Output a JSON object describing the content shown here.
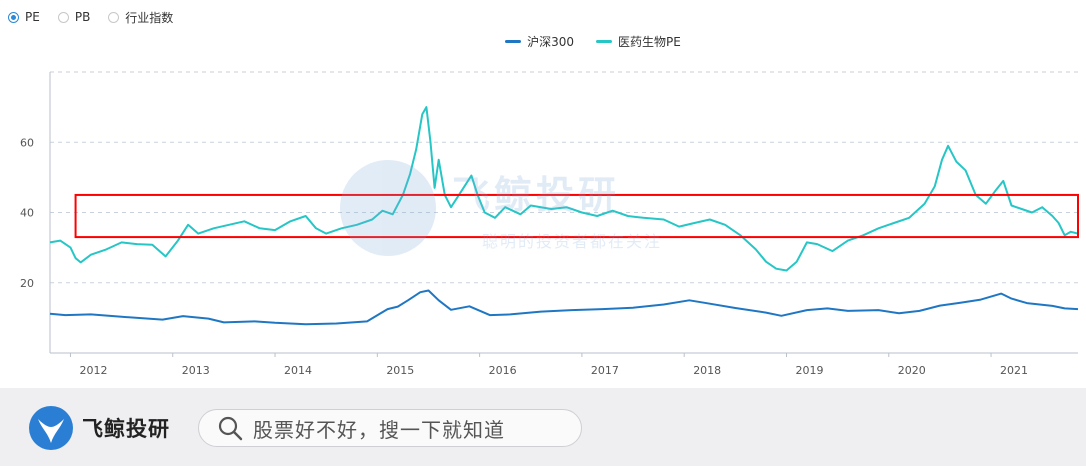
{
  "radio_options": [
    {
      "label": "PE",
      "selected": true
    },
    {
      "label": "PB",
      "selected": false
    },
    {
      "label": "行业指数",
      "selected": false
    }
  ],
  "watermark": {
    "title": "飞鲸投研",
    "subtitle": "聪明的投资者都在关注"
  },
  "footer": {
    "brand": "飞鲸投研",
    "search_placeholder": "股票好不好，搜一下就知道"
  },
  "colors": {
    "hs300": "#1f77c4",
    "pharma": "#26c6c6",
    "highlight": "#ff0000",
    "grid": "#c9d2dc"
  },
  "chart_data": {
    "type": "line",
    "x_range": [
      2011.8,
      2021.85
    ],
    "ylim": [
      0,
      80
    ],
    "yticks": [
      20,
      40,
      60
    ],
    "xticks": [
      "2012",
      "2013",
      "2014",
      "2015",
      "2016",
      "2017",
      "2018",
      "2019",
      "2020",
      "2021"
    ],
    "grid": true,
    "legend_position": "top-center",
    "series": [
      {
        "name": "沪深300",
        "color": "#1f77c4",
        "points": [
          [
            2011.8,
            11.2
          ],
          [
            2011.95,
            10.8
          ],
          [
            2012.2,
            11.0
          ],
          [
            2012.5,
            10.3
          ],
          [
            2012.9,
            9.5
          ],
          [
            2013.1,
            10.5
          ],
          [
            2013.35,
            9.8
          ],
          [
            2013.5,
            8.7
          ],
          [
            2013.8,
            9.0
          ],
          [
            2014.0,
            8.6
          ],
          [
            2014.3,
            8.2
          ],
          [
            2014.6,
            8.4
          ],
          [
            2014.9,
            9.0
          ],
          [
            2015.1,
            12.5
          ],
          [
            2015.2,
            13.2
          ],
          [
            2015.3,
            15.0
          ],
          [
            2015.42,
            17.3
          ],
          [
            2015.5,
            17.8
          ],
          [
            2015.6,
            15.0
          ],
          [
            2015.72,
            12.3
          ],
          [
            2015.9,
            13.3
          ],
          [
            2016.1,
            10.8
          ],
          [
            2016.3,
            11.0
          ],
          [
            2016.6,
            11.8
          ],
          [
            2016.9,
            12.2
          ],
          [
            2017.2,
            12.5
          ],
          [
            2017.5,
            12.9
          ],
          [
            2017.8,
            13.8
          ],
          [
            2018.05,
            15.0
          ],
          [
            2018.2,
            14.3
          ],
          [
            2018.5,
            12.8
          ],
          [
            2018.8,
            11.5
          ],
          [
            2018.95,
            10.6
          ],
          [
            2019.2,
            12.2
          ],
          [
            2019.4,
            12.7
          ],
          [
            2019.6,
            12.0
          ],
          [
            2019.9,
            12.2
          ],
          [
            2020.1,
            11.3
          ],
          [
            2020.3,
            12.0
          ],
          [
            2020.5,
            13.5
          ],
          [
            2020.7,
            14.3
          ],
          [
            2020.9,
            15.2
          ],
          [
            2021.1,
            16.9
          ],
          [
            2021.2,
            15.5
          ],
          [
            2021.35,
            14.2
          ],
          [
            2021.6,
            13.4
          ],
          [
            2021.72,
            12.7
          ],
          [
            2021.85,
            12.5
          ]
        ]
      },
      {
        "name": "医药生物PE",
        "color": "#26c6c6",
        "points": [
          [
            2011.8,
            31.5
          ],
          [
            2011.9,
            32.0
          ],
          [
            2012.0,
            30.0
          ],
          [
            2012.05,
            27.0
          ],
          [
            2012.1,
            25.8
          ],
          [
            2012.2,
            28.0
          ],
          [
            2012.35,
            29.5
          ],
          [
            2012.5,
            31.5
          ],
          [
            2012.65,
            31.0
          ],
          [
            2012.8,
            30.8
          ],
          [
            2012.93,
            27.5
          ],
          [
            2013.05,
            32.0
          ],
          [
            2013.15,
            36.5
          ],
          [
            2013.25,
            34.0
          ],
          [
            2013.4,
            35.5
          ],
          [
            2013.55,
            36.5
          ],
          [
            2013.7,
            37.5
          ],
          [
            2013.85,
            35.5
          ],
          [
            2014.0,
            35.0
          ],
          [
            2014.15,
            37.5
          ],
          [
            2014.3,
            39.0
          ],
          [
            2014.4,
            35.5
          ],
          [
            2014.5,
            34.0
          ],
          [
            2014.65,
            35.5
          ],
          [
            2014.8,
            36.5
          ],
          [
            2014.95,
            38.0
          ],
          [
            2015.05,
            40.5
          ],
          [
            2015.15,
            39.5
          ],
          [
            2015.25,
            45.0
          ],
          [
            2015.32,
            51.0
          ],
          [
            2015.38,
            58.0
          ],
          [
            2015.44,
            68.0
          ],
          [
            2015.48,
            70.0
          ],
          [
            2015.52,
            60.0
          ],
          [
            2015.56,
            47.0
          ],
          [
            2015.6,
            55.0
          ],
          [
            2015.66,
            45.0
          ],
          [
            2015.72,
            41.5
          ],
          [
            2015.82,
            46.0
          ],
          [
            2015.92,
            50.5
          ],
          [
            2015.98,
            45.0
          ],
          [
            2016.05,
            40.0
          ],
          [
            2016.15,
            38.5
          ],
          [
            2016.25,
            41.5
          ],
          [
            2016.4,
            39.5
          ],
          [
            2016.5,
            42.0
          ],
          [
            2016.7,
            41.0
          ],
          [
            2016.85,
            41.5
          ],
          [
            2017.0,
            40.0
          ],
          [
            2017.15,
            39.0
          ],
          [
            2017.3,
            40.5
          ],
          [
            2017.45,
            39.0
          ],
          [
            2017.6,
            38.5
          ],
          [
            2017.8,
            38.0
          ],
          [
            2017.95,
            36.0
          ],
          [
            2018.1,
            37.0
          ],
          [
            2018.25,
            38.0
          ],
          [
            2018.4,
            36.5
          ],
          [
            2018.55,
            33.5
          ],
          [
            2018.7,
            29.5
          ],
          [
            2018.8,
            26.0
          ],
          [
            2018.9,
            24.0
          ],
          [
            2019.0,
            23.5
          ],
          [
            2019.1,
            26.0
          ],
          [
            2019.2,
            31.5
          ],
          [
            2019.3,
            31.0
          ],
          [
            2019.45,
            29.0
          ],
          [
            2019.6,
            32.0
          ],
          [
            2019.75,
            33.5
          ],
          [
            2019.9,
            35.5
          ],
          [
            2020.05,
            37.0
          ],
          [
            2020.2,
            38.5
          ],
          [
            2020.35,
            42.5
          ],
          [
            2020.45,
            47.5
          ],
          [
            2020.52,
            55.0
          ],
          [
            2020.58,
            59.0
          ],
          [
            2020.66,
            54.5
          ],
          [
            2020.75,
            52.0
          ],
          [
            2020.85,
            45.0
          ],
          [
            2020.95,
            42.5
          ],
          [
            2021.05,
            46.5
          ],
          [
            2021.12,
            49.0
          ],
          [
            2021.2,
            42.0
          ],
          [
            2021.3,
            41.0
          ],
          [
            2021.4,
            40.0
          ],
          [
            2021.5,
            41.5
          ],
          [
            2021.6,
            39.0
          ],
          [
            2021.66,
            37.0
          ],
          [
            2021.72,
            33.5
          ],
          [
            2021.78,
            34.5
          ],
          [
            2021.85,
            34.0
          ]
        ]
      }
    ],
    "highlight_band": {
      "y_low": 33,
      "y_high": 45,
      "x_start": 2012.05,
      "x_end": 2021.85
    }
  }
}
